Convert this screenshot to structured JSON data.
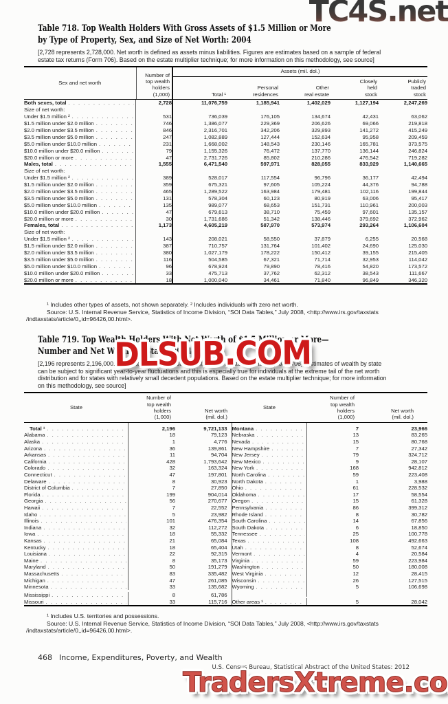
{
  "watermarks": {
    "top": "TC4S.net",
    "middle": "DLSUB.COM",
    "bottom": "TradersXtreme.com"
  },
  "table718": {
    "title_line1": "Table 718. Top Wealth Holders With Gross Assets of $1.5 Million or More",
    "title_line2": "by Type of Property, Sex, and Size of Net Worth: 2004",
    "headnote": "[2,728 represents 2,728,000. Net worth is defined as assets minus liabilities. Figures are estimates based on a sample of federal\nestate tax returns (Form 706). Based on the estate multiplier technique; for more information on this methodology, see source]",
    "header": {
      "stub": "Sex and net worth",
      "holders": "Number of\ntop wealth\nholders\n(1,000)",
      "assets_span": "Assets (mil. dol.)",
      "cols": [
        "Total ¹",
        "Personal\nresidences",
        "Other\nreal estate",
        "Closely\nheld\nstock",
        "Publicly\ntraded\nstock"
      ]
    },
    "rows": [
      {
        "label": "Both sexes, total",
        "bold": true,
        "indent": 2,
        "values": [
          "2,728",
          "11,076,759",
          "1,185,941",
          "1,402,029",
          "1,127,194",
          "2,247,269"
        ]
      },
      {
        "label": "Size of net worth:",
        "section": true
      },
      {
        "label": "Under $1.5 million ²",
        "indent": 1,
        "values": [
          "531",
          "736,039",
          "176,105",
          "134,674",
          "42,431",
          "63,062"
        ]
      },
      {
        "label": "$1.5 million under $2.0 million",
        "values": [
          "746",
          "1,386,077",
          "229,369",
          "206,626",
          "69,066",
          "219,818"
        ]
      },
      {
        "label": "$2.0 million under $3.5 million",
        "values": [
          "846",
          "2,316,701",
          "342,206",
          "329,893",
          "141,272",
          "415,249"
        ]
      },
      {
        "label": "$3.5 million under $5.0 million",
        "values": [
          "247",
          "1,082,889",
          "127,444",
          "152,634",
          "95,958",
          "209,459"
        ]
      },
      {
        "label": "$5.0 million under $10.0 million",
        "values": [
          "231",
          "1,668,002",
          "148,543",
          "230,146",
          "165,781",
          "373,575"
        ]
      },
      {
        "label": "$10.0 million under $20.0 million",
        "values": [
          "79",
          "1,155,326",
          "76,472",
          "137,770",
          "136,144",
          "246,824"
        ]
      },
      {
        "label": "$20.0 million or more",
        "values": [
          "47",
          "2,731,726",
          "85,802",
          "210,286",
          "476,542",
          "719,282"
        ]
      },
      {
        "label": "Males, total",
        "bold": true,
        "gap": true,
        "indent": 2,
        "values": [
          "1,555",
          "6,471,540",
          "597,971",
          "828,055",
          "833,929",
          "1,140,665"
        ]
      },
      {
        "label": "Size of net worth:",
        "section": true
      },
      {
        "label": "Under $1.5 million ²",
        "indent": 1,
        "values": [
          "389",
          "528,017",
          "117,554",
          "96,796",
          "36,177",
          "42,494"
        ]
      },
      {
        "label": "$1.5 million under $2.0 million",
        "values": [
          "359",
          "675,321",
          "97,605",
          "105,224",
          "44,376",
          "94,788"
        ]
      },
      {
        "label": "$2.0 million under $3.5 million",
        "values": [
          "465",
          "1,289,522",
          "163,984",
          "179,481",
          "102,116",
          "199,844"
        ]
      },
      {
        "label": "$3.5 million under $5.0 million",
        "values": [
          "131",
          "578,304",
          "60,123",
          "80,919",
          "63,006",
          "95,417"
        ]
      },
      {
        "label": "$5.0 million under $10.0 million",
        "values": [
          "135",
          "989,077",
          "68,653",
          "151,731",
          "110,961",
          "200,003"
        ]
      },
      {
        "label": "$10.0 million under $20.0 million",
        "values": [
          "47",
          "679,613",
          "38,710",
          "75,459",
          "97,601",
          "135,157"
        ]
      },
      {
        "label": "$20.0 million or more",
        "values": [
          "30",
          "1,731,686",
          "51,342",
          "138,446",
          "379,692",
          "372,962"
        ]
      },
      {
        "label": "Females, total",
        "bold": true,
        "gap": true,
        "indent": 2,
        "values": [
          "1,173",
          "4,605,219",
          "587,970",
          "573,974",
          "293,264",
          "1,106,604"
        ]
      },
      {
        "label": "Size of net worth:",
        "section": true
      },
      {
        "label": "Under $1.5 million ²",
        "indent": 1,
        "values": [
          "143",
          "208,021",
          "58,550",
          "37,879",
          "6,255",
          "20,568"
        ]
      },
      {
        "label": "$1.5 million under $2.0 million",
        "values": [
          "387",
          "710,757",
          "131,764",
          "101,402",
          "24,690",
          "125,030"
        ]
      },
      {
        "label": "$2.0 million under $3.5 million",
        "values": [
          "380",
          "1,027,179",
          "178,222",
          "150,412",
          "39,155",
          "215,405"
        ]
      },
      {
        "label": "$3.5 million under $5.0 million",
        "values": [
          "116",
          "504,585",
          "67,321",
          "71,714",
          "32,953",
          "114,042"
        ]
      },
      {
        "label": "$5.0 million under $10.0 million",
        "values": [
          "96",
          "678,924",
          "79,890",
          "78,416",
          "54,820",
          "173,572"
        ]
      },
      {
        "label": "$10.0 million under $20.0 million",
        "values": [
          "33",
          "475,713",
          "37,762",
          "62,312",
          "38,543",
          "111,667"
        ]
      },
      {
        "label": "$20.0 million or more",
        "values": [
          "18",
          "1,000,040",
          "34,461",
          "71,840",
          "96,849",
          "346,320"
        ]
      }
    ],
    "footnote": "¹ Includes other types of assets, not shown separately. ² Includes individuals with zero net worth.",
    "source_line1": "Source: U.S. Internal Revenue Service, Statistics of Income Division, “SOI Data Tables,” July 2008, <http://www.irs.gov/taxstats",
    "source_line2": "/indtaxstats/article/0,,id=96426,00.html>."
  },
  "table719": {
    "title_line1": "Table 719. Top Wealth Holders With Net Worth of $1.5 Million or More—",
    "title_line2": "Number and Net Worth by State: 2004",
    "headnote": "[2,196 represents 2,196,000. Estimates based on a sample of federal estate tax returns (Form 706). Estimates of wealth by state\ncan be subject to significant year-to-year fluctuations and this is especially true for individuals at the extreme tail of the net worth\ndistribution and for states with relatively small decedent populations. Based on the estate multiplier technique; for more information\non this methodology, see source]",
    "header": {
      "state": "State",
      "holders": "Number of\ntop wealth\nholders\n(1,000)",
      "networth": "Net worth\n(mil. dol.)"
    },
    "rows": [
      {
        "l": [
          "Total ¹",
          "2,196",
          "9,721,133"
        ],
        "lb": true,
        "gap": true,
        "r": [
          "Montana",
          "7",
          "23,966"
        ]
      },
      {
        "l": [
          "Alabama",
          "18",
          "79,123"
        ],
        "r": [
          "Nebraska",
          "13",
          "83,265"
        ]
      },
      {
        "l": [
          "Alaska",
          "1",
          "4,776"
        ],
        "r": [
          "Nevada",
          "15",
          "80,768"
        ]
      },
      {
        "l": [
          "Arizona",
          "36",
          "139,861"
        ],
        "r": [
          "New Hampshire",
          "7",
          "27,342"
        ]
      },
      {
        "l": [
          "Arkansas",
          "11",
          "94,704"
        ],
        "r": [
          "New Jersey",
          "79",
          "324,712"
        ]
      },
      {
        "l": [
          "California",
          "428",
          "1,793,642"
        ],
        "r": [
          "New Mexico",
          "9",
          "28,107"
        ]
      },
      {
        "l": [
          "Colorado",
          "32",
          "163,324"
        ],
        "r": [
          "New York",
          "168",
          "942,812"
        ]
      },
      {
        "l": [
          "Connecticut",
          "47",
          "197,801"
        ],
        "r": [
          "North Carolina",
          "59",
          "223,408"
        ]
      },
      {
        "l": [
          "Delaware",
          "8",
          "30,923"
        ],
        "r": [
          "North Dakota",
          "1",
          "3,988"
        ]
      },
      {
        "l": [
          "District of Columbia",
          "7",
          "27,850"
        ],
        "r": [
          "Ohio",
          "61",
          "228,532"
        ]
      },
      {
        "l": [
          "Florida",
          "199",
          "904,014"
        ],
        "r": [
          "Oklahoma",
          "17",
          "58,554"
        ]
      },
      {
        "l": [
          "Georgia",
          "56",
          "270,677"
        ],
        "r": [
          "Oregon",
          "15",
          "61,328"
        ]
      },
      {
        "l": [
          "Hawaii",
          "7",
          "22,552"
        ],
        "r": [
          "Pennsylvania",
          "86",
          "399,312"
        ]
      },
      {
        "l": [
          "Idaho",
          "5",
          "23,982"
        ],
        "r": [
          "Rhode Island",
          "8",
          "30,782"
        ]
      },
      {
        "l": [
          "Illinois",
          "101",
          "476,354"
        ],
        "r": [
          "South Carolina",
          "14",
          "67,856"
        ]
      },
      {
        "l": [
          "Indiana",
          "32",
          "112,272"
        ],
        "r": [
          "South Dakota",
          "6",
          "18,850"
        ]
      },
      {
        "l": [
          "Iowa",
          "18",
          "55,332"
        ],
        "r": [
          "Tennessee",
          "25",
          "100,778"
        ]
      },
      {
        "l": [
          "Kansas",
          "21",
          "65,084"
        ],
        "r": [
          "Texas",
          "108",
          "492,663"
        ]
      },
      {
        "l": [
          "Kentucky",
          "18",
          "65,404"
        ],
        "r": [
          "Utah",
          "8",
          "52,674"
        ]
      },
      {
        "l": [
          "Louisiana",
          "22",
          "92,315"
        ],
        "r": [
          "Vermont",
          "4",
          "20,584"
        ]
      },
      {
        "l": [
          "Maine",
          "8",
          "35,173"
        ],
        "r": [
          "Virginia",
          "59",
          "223,984"
        ]
      },
      {
        "l": [
          "Maryland",
          "50",
          "191,279"
        ],
        "r": [
          "Washington",
          "50",
          "180,008"
        ]
      },
      {
        "l": [
          "Massachusetts",
          "83",
          "335,482"
        ],
        "r": [
          "West Virginia",
          "12",
          "28,415"
        ]
      },
      {
        "l": [
          "Michigan",
          "47",
          "261,085"
        ],
        "r": [
          "Wisconsin",
          "26",
          "127,515"
        ]
      },
      {
        "l": [
          "Minnesota",
          "33",
          "135,682"
        ],
        "r": [
          "Wyoming",
          "5",
          "106,698"
        ]
      },
      {
        "l": [
          "Mississippi",
          "8",
          "61,786"
        ],
        "r": null
      },
      {
        "l": [
          "Missouri",
          "33",
          "115,716"
        ],
        "r": [
          "Other areas ¹",
          "5",
          "28,042"
        ]
      }
    ],
    "footnote": "¹ Includes U.S. territories and possessions.",
    "source_line1": "Source: U.S. Internal Revenue Service, Statistics of Income Division, “SOI Data Tables,” July 2008, <http://www.irs.gov/taxstats",
    "source_line2": "/indtaxstats/article/0,,id=96426,00.html>."
  },
  "footer": {
    "page_number": "468",
    "section_title": "Income, Expenditures, Poverty, and Wealth",
    "census_line": "U.S. Census Bureau, Statistical Abstract of the United States: 2012"
  }
}
